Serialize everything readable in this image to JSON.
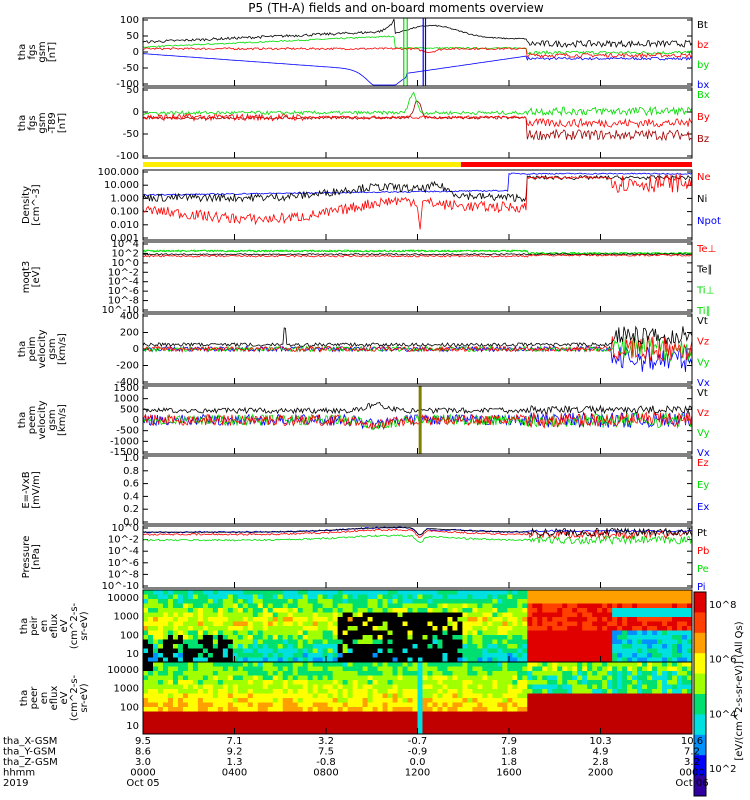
{
  "title": "P5 (TH-A) fields and on-board moments overview",
  "colors": {
    "black": "#000000",
    "red": "#ff0000",
    "green": "#00dd00",
    "blue": "#0000ff",
    "darkred": "#a00000",
    "yellow": "#ffee00"
  },
  "status_bar": {
    "yellow_until_hour": 13.9,
    "color_first": "#ffee00",
    "color_second": "#ff0000"
  },
  "colorbar": {
    "label": "[eV/(cm^2-s-sr-eV)] (All Qs)",
    "ticks": [
      "10^8",
      "10^6",
      "10^4",
      "10^2"
    ]
  },
  "chart_data": [
    {
      "id": "fgs",
      "type": "line",
      "ylabel": [
        "tha",
        "fgs",
        "gsm",
        "[nT]"
      ],
      "ylim": [
        -100,
        100
      ],
      "yticks": [
        "100",
        "50",
        "0",
        "-50",
        "-100"
      ],
      "series": [
        {
          "name": "Bt",
          "color": "#000000"
        },
        {
          "name": "bz",
          "color": "#ff0000"
        },
        {
          "name": "by",
          "color": "#00dd00"
        },
        {
          "name": "bx",
          "color": "#0000ff"
        }
      ]
    },
    {
      "id": "fgs2",
      "type": "line",
      "ylabel": [
        "tha",
        "fgs",
        "gsm",
        "-T89",
        "[nT]"
      ],
      "ylim": [
        -125,
        75
      ],
      "yticks": [
        "50",
        "0",
        "-50",
        "-100"
      ],
      "series": [
        {
          "name": "Bx",
          "color": "#00dd00"
        },
        {
          "name": "By",
          "color": "#ff0000"
        },
        {
          "name": "Bz",
          "color": "#a00000"
        }
      ]
    },
    {
      "id": "density",
      "type": "line",
      "log": true,
      "ylabel": [
        "Density",
        "[cm^-3]"
      ],
      "yticks": [
        "100.000",
        "10.000",
        "1.000",
        "0.100",
        "0.010",
        "0.001"
      ],
      "series": [
        {
          "name": "Ne",
          "color": "#ff0000"
        },
        {
          "name": "Ni",
          "color": "#000000"
        },
        {
          "name": "Npot",
          "color": "#0000ff"
        }
      ]
    },
    {
      "id": "temp",
      "type": "line",
      "log": true,
      "ylabel": [
        "moqt3",
        "[eV]"
      ],
      "yticks": [
        "10^4",
        "10^2",
        "10^0",
        "10^-2",
        "10^-4",
        "10^-6",
        "10^-8",
        "10^-10"
      ],
      "series": [
        {
          "name": "Te⊥",
          "color": "#ff0000"
        },
        {
          "name": "Te∥",
          "color": "#000000"
        },
        {
          "name": "Ti⊥",
          "color": "#00dd00"
        },
        {
          "name": "Ti∥",
          "color": "#00dd00"
        }
      ]
    },
    {
      "id": "vi",
      "type": "line",
      "ylabel": [
        "tha",
        "peim",
        "velocity",
        "gsm",
        "[km/s]"
      ],
      "ylim": [
        -400,
        400
      ],
      "yticks": [
        "400",
        "200",
        "0",
        "-200",
        "-400"
      ],
      "series": [
        {
          "name": "Vt",
          "color": "#000000"
        },
        {
          "name": "Vz",
          "color": "#ff0000"
        },
        {
          "name": "Vy",
          "color": "#00dd00"
        },
        {
          "name": "Vx",
          "color": "#0000ff"
        }
      ]
    },
    {
      "id": "ve",
      "type": "line",
      "ylabel": [
        "tha",
        "peem",
        "velocity",
        "gsm",
        "[km/s]"
      ],
      "ylim": [
        -1500,
        1500
      ],
      "yticks": [
        "1500",
        "1000",
        "500",
        "0",
        "-500",
        "-1000",
        "-1500"
      ],
      "series": [
        {
          "name": "Vt",
          "color": "#000000"
        },
        {
          "name": "Vz",
          "color": "#ff0000"
        },
        {
          "name": "Vy",
          "color": "#00dd00"
        },
        {
          "name": "Vx",
          "color": "#0000ff"
        }
      ]
    },
    {
      "id": "efield",
      "type": "line",
      "ylabel": [
        "E=-VxB",
        "[mV/m]"
      ],
      "ylim": [
        -0.1,
        1.0
      ],
      "yticks": [
        "1.0",
        "0.8",
        "0.6",
        "0.4",
        "0.2",
        "0.0"
      ],
      "series": [
        {
          "name": "Ez",
          "color": "#ff0000"
        },
        {
          "name": "Ey",
          "color": "#00dd00"
        },
        {
          "name": "Ex",
          "color": "#0000ff"
        }
      ]
    },
    {
      "id": "pressure",
      "type": "line",
      "log": true,
      "ylabel": [
        "Pressure",
        "[nPa]"
      ],
      "yticks": [
        "10^0",
        "10^-2",
        "10^-4",
        "10^-6",
        "10^-8",
        "10^-10"
      ],
      "series": [
        {
          "name": "Pt",
          "color": "#000000"
        },
        {
          "name": "Pb",
          "color": "#ff0000"
        },
        {
          "name": "Pe",
          "color": "#00dd00"
        },
        {
          "name": "Pi",
          "color": "#0000ff"
        }
      ]
    },
    {
      "id": "ion_spec",
      "type": "heatmap",
      "ylabel": [
        "tha",
        "peir",
        "en",
        "eflux",
        "eV",
        "(cm^2-s-",
        "sr-eV)"
      ],
      "yticks": [
        "10000",
        "1000",
        "100",
        "10"
      ]
    },
    {
      "id": "ele_spec",
      "type": "heatmap",
      "ylabel": [
        "tha",
        "peer",
        "en",
        "eflux",
        "eV",
        "(cm^2-s-",
        "sr-eV)"
      ],
      "yticks": [
        "10000",
        "1000",
        "100",
        "10"
      ]
    }
  ],
  "x_axis": {
    "rows": [
      {
        "label": "tha_X-GSM",
        "values": [
          "9.5",
          "7.1",
          "3.2",
          "-0.7",
          "7.9",
          "10.3",
          "10.6"
        ]
      },
      {
        "label": "tha_Y-GSM",
        "values": [
          "8.6",
          "9.2",
          "7.5",
          "-0.9",
          "1.8",
          "4.9",
          "7.2"
        ]
      },
      {
        "label": "tha_Z-GSM",
        "values": [
          "3.0",
          "1.3",
          "-0.8",
          "0.0",
          "1.8",
          "2.8",
          "3.2"
        ]
      },
      {
        "label": "hhmm",
        "values": [
          "0000",
          "0400",
          "0800",
          "1200",
          "1600",
          "2000",
          "0000"
        ]
      }
    ],
    "extra": [
      {
        "label": "2019",
        "values": [
          "Oct 05",
          "",
          "",
          "",
          "",
          "",
          "Oct 06"
        ]
      }
    ],
    "tick_hours": [
      0,
      4,
      8,
      12,
      16,
      20,
      24
    ]
  }
}
